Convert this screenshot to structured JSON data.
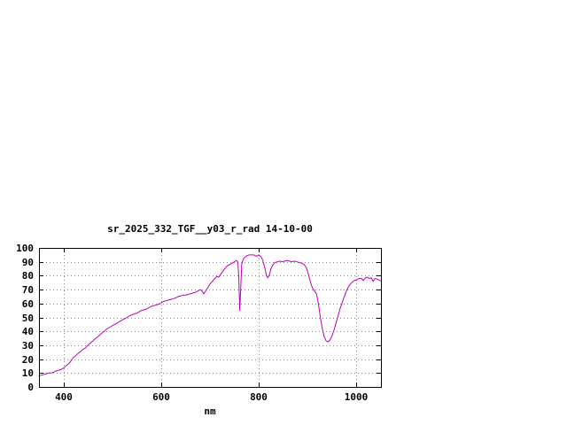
{
  "window": {
    "background": "#ffffff"
  },
  "chart_data": {
    "type": "line",
    "title": "sr_2025_332_TGF__y03_r_rad 14-10-00",
    "xlabel": "nm",
    "ylabel": "",
    "xlim": [
      350,
      1050
    ],
    "ylim": [
      0,
      100
    ],
    "x_ticks": [
      400,
      600,
      800,
      1000
    ],
    "y_ticks": [
      0,
      10,
      20,
      30,
      40,
      50,
      60,
      70,
      80,
      90,
      100
    ],
    "grid": true,
    "legend": "none",
    "line_color": "#bb00bb",
    "border_color": "#000000",
    "grid_color": "#888888",
    "series": [
      {
        "name": "sr_2025_332_TGF__y03_r_rad",
        "points": [
          [
            350,
            8
          ],
          [
            355,
            8.5
          ],
          [
            360,
            9
          ],
          [
            365,
            9.5
          ],
          [
            370,
            10
          ],
          [
            375,
            10
          ],
          [
            380,
            10.5
          ],
          [
            385,
            11.5
          ],
          [
            390,
            12
          ],
          [
            395,
            12.5
          ],
          [
            400,
            13.5
          ],
          [
            405,
            15
          ],
          [
            410,
            16.5
          ],
          [
            415,
            18.5
          ],
          [
            420,
            21
          ],
          [
            425,
            22.5
          ],
          [
            430,
            24
          ],
          [
            435,
            25.5
          ],
          [
            440,
            27
          ],
          [
            445,
            28
          ],
          [
            450,
            30
          ],
          [
            455,
            31.5
          ],
          [
            460,
            33
          ],
          [
            465,
            34.5
          ],
          [
            470,
            36
          ],
          [
            475,
            37.5
          ],
          [
            480,
            39
          ],
          [
            485,
            40.5
          ],
          [
            490,
            42
          ],
          [
            495,
            43
          ],
          [
            500,
            44
          ],
          [
            505,
            45
          ],
          [
            510,
            46
          ],
          [
            515,
            47
          ],
          [
            520,
            48
          ],
          [
            525,
            49
          ],
          [
            530,
            50
          ],
          [
            535,
            51
          ],
          [
            540,
            52
          ],
          [
            545,
            52.5
          ],
          [
            550,
            53
          ],
          [
            555,
            54
          ],
          [
            560,
            55
          ],
          [
            565,
            55.5
          ],
          [
            570,
            56
          ],
          [
            575,
            57
          ],
          [
            580,
            58
          ],
          [
            585,
            58.5
          ],
          [
            590,
            59
          ],
          [
            595,
            59.5
          ],
          [
            600,
            60.5
          ],
          [
            605,
            61.5
          ],
          [
            610,
            62
          ],
          [
            615,
            62.5
          ],
          [
            620,
            63
          ],
          [
            625,
            63.5
          ],
          [
            630,
            64
          ],
          [
            635,
            65
          ],
          [
            640,
            65.5
          ],
          [
            645,
            66
          ],
          [
            650,
            66
          ],
          [
            655,
            66.5
          ],
          [
            660,
            67
          ],
          [
            665,
            67.5
          ],
          [
            670,
            68
          ],
          [
            675,
            69
          ],
          [
            680,
            70
          ],
          [
            684,
            69
          ],
          [
            687,
            67
          ],
          [
            690,
            68.5
          ],
          [
            695,
            71
          ],
          [
            700,
            74
          ],
          [
            705,
            76
          ],
          [
            710,
            78
          ],
          [
            714,
            79.5
          ],
          [
            718,
            79
          ],
          [
            722,
            81
          ],
          [
            726,
            83
          ],
          [
            730,
            85
          ],
          [
            735,
            87
          ],
          [
            740,
            88
          ],
          [
            745,
            89
          ],
          [
            750,
            90
          ],
          [
            754,
            91
          ],
          [
            757,
            90
          ],
          [
            759,
            80
          ],
          [
            761,
            55
          ],
          [
            763,
            70
          ],
          [
            765,
            88
          ],
          [
            768,
            92
          ],
          [
            772,
            93.5
          ],
          [
            776,
            94.5
          ],
          [
            780,
            95
          ],
          [
            785,
            95
          ],
          [
            790,
            95
          ],
          [
            795,
            94
          ],
          [
            800,
            95
          ],
          [
            805,
            93.5
          ],
          [
            808,
            91
          ],
          [
            812,
            86
          ],
          [
            815,
            81
          ],
          [
            818,
            78.5
          ],
          [
            821,
            80
          ],
          [
            825,
            85
          ],
          [
            829,
            88
          ],
          [
            833,
            89.5
          ],
          [
            838,
            90
          ],
          [
            843,
            90.5
          ],
          [
            848,
            90
          ],
          [
            853,
            90.5
          ],
          [
            858,
            91
          ],
          [
            863,
            90.5
          ],
          [
            868,
            90
          ],
          [
            873,
            90.5
          ],
          [
            878,
            90
          ],
          [
            883,
            89.5
          ],
          [
            888,
            89
          ],
          [
            893,
            88
          ],
          [
            897,
            86
          ],
          [
            900,
            83
          ],
          [
            903,
            79
          ],
          [
            906,
            75
          ],
          [
            910,
            71
          ],
          [
            914,
            69
          ],
          [
            918,
            67
          ],
          [
            922,
            60
          ],
          [
            926,
            50
          ],
          [
            930,
            42
          ],
          [
            934,
            36
          ],
          [
            938,
            33
          ],
          [
            942,
            32.5
          ],
          [
            946,
            34
          ],
          [
            950,
            37
          ],
          [
            954,
            41
          ],
          [
            958,
            46
          ],
          [
            962,
            51
          ],
          [
            966,
            56
          ],
          [
            970,
            60
          ],
          [
            974,
            64
          ],
          [
            978,
            68
          ],
          [
            982,
            71
          ],
          [
            986,
            73.5
          ],
          [
            990,
            75
          ],
          [
            995,
            76.5
          ],
          [
            1000,
            77
          ],
          [
            1005,
            78
          ],
          [
            1010,
            78
          ],
          [
            1014,
            76.5
          ],
          [
            1018,
            78.5
          ],
          [
            1022,
            79
          ],
          [
            1026,
            78
          ],
          [
            1030,
            78.5
          ],
          [
            1034,
            76
          ],
          [
            1038,
            78
          ],
          [
            1042,
            77.5
          ],
          [
            1046,
            77
          ],
          [
            1050,
            76
          ]
        ]
      }
    ]
  }
}
